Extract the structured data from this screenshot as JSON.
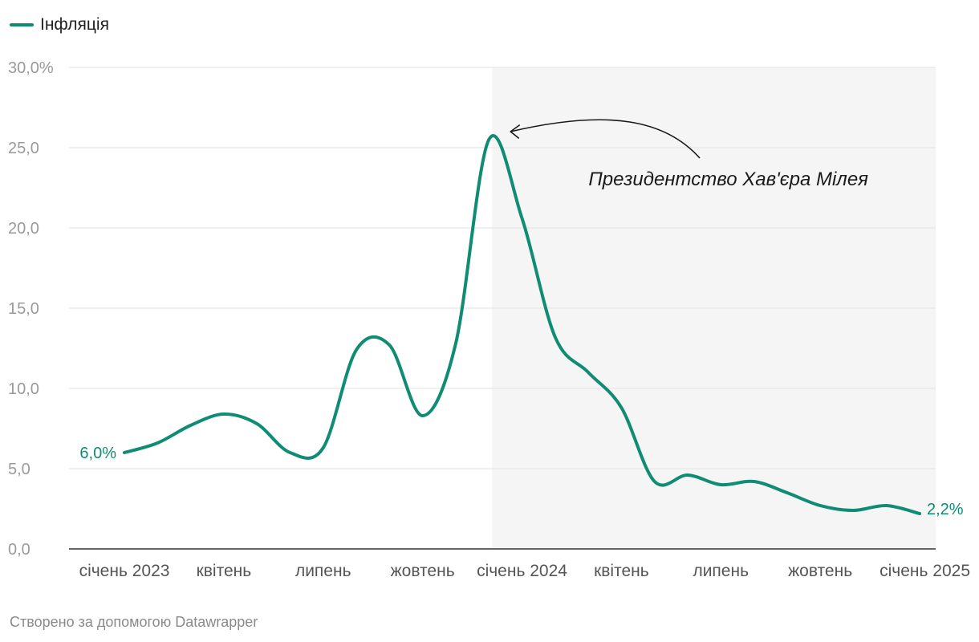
{
  "colors": {
    "line": "#0f8c73",
    "grid": "#e2e2e2",
    "shade": "#f5f5f5",
    "annotation": "#1a1a1a"
  },
  "legend": {
    "label": "Інфляція"
  },
  "footer": {
    "credit": "Створено за допомогою Datawrapper"
  },
  "chart_data": {
    "type": "line",
    "title": "",
    "xlabel": "",
    "ylabel": "",
    "x_range": [
      "2023-01",
      "2025-01"
    ],
    "ylim": [
      0,
      30
    ],
    "yticks": [
      0,
      5,
      10,
      15,
      20,
      25,
      30
    ],
    "ytick_labels": [
      "0,0",
      "5,0",
      "10,0",
      "15,0",
      "20,0",
      "25,0",
      "30,0%"
    ],
    "xticks": [
      {
        "x": "2023-01",
        "label": "січень 2023"
      },
      {
        "x": "2023-04",
        "label": "квітень"
      },
      {
        "x": "2023-07",
        "label": "липень"
      },
      {
        "x": "2023-10",
        "label": "жовтень"
      },
      {
        "x": "2024-01",
        "label": "січень 2024"
      },
      {
        "x": "2024-04",
        "label": "квітень"
      },
      {
        "x": "2024-07",
        "label": "липень"
      },
      {
        "x": "2024-10",
        "label": "жовтень"
      },
      {
        "x": "2025-01",
        "label": "січень 2025"
      }
    ],
    "grid": true,
    "legend_position": "top-left",
    "series": [
      {
        "name": "Інфляція",
        "x": [
          "2023-01",
          "2023-02",
          "2023-03",
          "2023-04",
          "2023-05",
          "2023-06",
          "2023-07",
          "2023-08",
          "2023-09",
          "2023-10",
          "2023-11",
          "2023-12",
          "2024-01",
          "2024-02",
          "2024-03",
          "2024-04",
          "2024-05",
          "2024-06",
          "2024-07",
          "2024-08",
          "2024-09",
          "2024-10",
          "2024-11",
          "2024-12",
          "2025-01"
        ],
        "values": [
          6.0,
          6.6,
          7.7,
          8.4,
          7.8,
          6.0,
          6.3,
          12.4,
          12.7,
          8.3,
          12.8,
          25.5,
          20.6,
          13.2,
          11.0,
          8.8,
          4.2,
          4.6,
          4.0,
          4.2,
          3.5,
          2.7,
          2.4,
          2.7,
          2.2
        ]
      }
    ],
    "end_labels": {
      "first": "6,0%",
      "last": "2,2%"
    },
    "shaded_region": {
      "from": "2023-12",
      "to": "2025-01",
      "label": "Президентство Хав'єра Мілея"
    },
    "annotation": {
      "text": "Президентство Хав'єра Мілея",
      "points_to": "2023-12"
    }
  }
}
